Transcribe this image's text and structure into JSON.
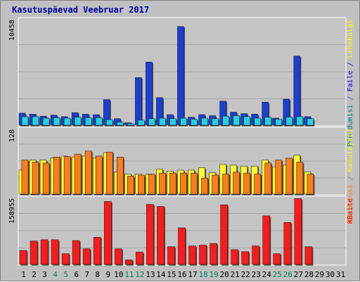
{
  "chart_data": {
    "type": "bar",
    "title": "Kasutuspäevad Veebruar 2017",
    "categories": [
      "1",
      "2",
      "3",
      "4",
      "5",
      "6",
      "7",
      "8",
      "9",
      "10",
      "11",
      "12",
      "13",
      "14",
      "15",
      "16",
      "17",
      "18",
      "19",
      "20",
      "21",
      "22",
      "23",
      "24",
      "25",
      "26",
      "27",
      "28",
      "29",
      "30",
      "31"
    ],
    "weekend_days": [
      "4",
      "5",
      "11",
      "12",
      "18",
      "19",
      "25",
      "26"
    ],
    "panels": [
      {
        "name": "top",
        "ymax_label": "10458",
        "ymax": 10458,
        "axis_label_parts": [
          {
            "text": "Pöördumisi",
            "color": "#008080"
          },
          {
            "text": " / ",
            "color": "#008080"
          },
          {
            "text": "Faile",
            "color": "#0000ff"
          },
          {
            "text": " / ",
            "color": "#0000ff"
          },
          {
            "text": "Lehekülgi",
            "color": "#ffff00"
          }
        ],
        "series": [
          {
            "name": "Pöördumisi",
            "color": "#1a3fd8",
            "values": [
              1200,
              1100,
              900,
              1000,
              850,
              1250,
              1100,
              1050,
              2550,
              650,
              250,
              4750,
              6300,
              2750,
              1050,
              9850,
              800,
              1050,
              950,
              2400,
              1300,
              1150,
              1100,
              2300,
              700,
              2600,
              6900,
              850,
              null,
              null,
              null
            ]
          },
          {
            "name": "Faile",
            "color": "#22d3e6",
            "values": [
              850,
              850,
              700,
              750,
              700,
              800,
              750,
              750,
              550,
              300,
              150,
              500,
              650,
              700,
              650,
              700,
              600,
              700,
              650,
              900,
              950,
              850,
              700,
              800,
              600,
              800,
              850,
              650,
              null,
              null,
              null
            ]
          }
        ]
      },
      {
        "name": "middle",
        "ymax_label": "128",
        "ymax": 128,
        "axis_label_parts": [
          {
            "text": "Külastusi",
            "color": "#ff8000"
          },
          {
            "text": " / ",
            "color": "#808080"
          },
          {
            "text": "Kasutajaid",
            "color": "#ffff00"
          }
        ],
        "series": [
          {
            "name": "Külastusi",
            "color": "#fcfc2c",
            "values": [
              48,
              68,
              68,
              72,
              76,
              74,
              76,
              72,
              83,
              44,
              40,
              40,
              40,
              50,
              46,
              48,
              48,
              53,
              43,
              60,
              58,
              56,
              56,
              68,
              54,
              58,
              78,
              44,
              null,
              null,
              null
            ]
          },
          {
            "name": "Kasutajaid",
            "color": "#ff7c1a",
            "values": [
              68,
              64,
              62,
              74,
              75,
              80,
              86,
              76,
              84,
              74,
              36,
              38,
              40,
              42,
              42,
              42,
              42,
              32,
              38,
              40,
              44,
              42,
              40,
              62,
              68,
              72,
              64,
              40,
              null,
              null,
              null
            ]
          }
        ]
      },
      {
        "name": "bottom",
        "ymax_label": "158955",
        "ymax": 158955,
        "axis_label_parts": [
          {
            "text": "KBaite",
            "color": "#ff0000"
          }
        ],
        "series": [
          {
            "name": "KBaite",
            "color": "#ff1a1a",
            "values": [
              34000,
              57000,
              60000,
              60000,
              26000,
              58000,
              38000,
              66000,
              153000,
              38000,
              11000,
              30000,
              146000,
              141000,
              43000,
              89000,
              45000,
              47000,
              51000,
              145000,
              36000,
              31000,
              45000,
              118000,
              26000,
              102000,
              160000,
              43000,
              null,
              null,
              null
            ]
          }
        ]
      }
    ]
  },
  "colors": {
    "frame_bg": "#c0c0c0",
    "panel_bg": "#c4c4c4",
    "panel_border": "#ffffff",
    "grid": "#a8a8a8",
    "title": "#0000a0",
    "day_label_weekday": "#000000",
    "day_label_weekend": "#008060"
  }
}
